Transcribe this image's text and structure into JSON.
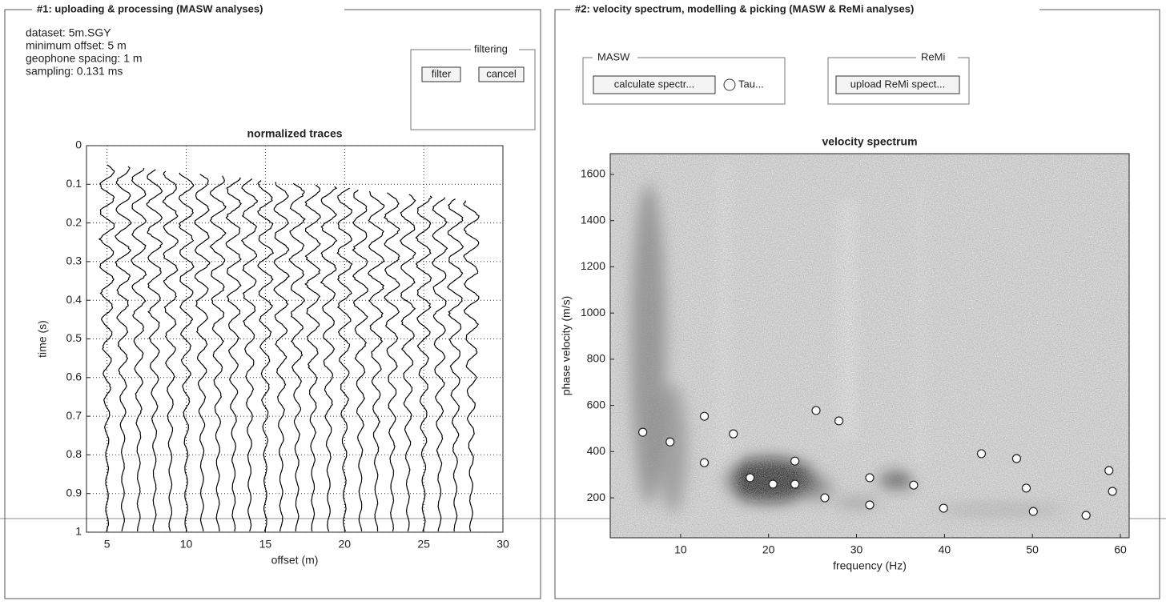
{
  "panel1": {
    "title": "#1: uploading & processing (MASW analyses)",
    "info": [
      "dataset: 5m.SGY",
      "minimum offset: 5 m",
      "geophone spacing: 1 m",
      "sampling: 0.131 ms"
    ],
    "filtering": {
      "title": "filtering",
      "buttons": [
        "filter",
        "cancel"
      ]
    },
    "chart": {
      "type": "seismogram",
      "title": "normalized traces",
      "xlabel": "offset (m)",
      "ylabel": "time (s)",
      "xlim": [
        3.7,
        30
      ],
      "ylim": [
        0,
        1
      ],
      "y_inverted": true,
      "xticks": [
        5,
        10,
        15,
        20,
        25,
        30
      ],
      "yticks": [
        0,
        0.1,
        0.2,
        0.3,
        0.4,
        0.5,
        0.6,
        0.7,
        0.8,
        0.9,
        1
      ],
      "grid": true,
      "trace_offsets": [
        5,
        6,
        7,
        8,
        9,
        10,
        11,
        12,
        13,
        14,
        15,
        16,
        17,
        18,
        19,
        20,
        21,
        22,
        23,
        24,
        25,
        26,
        27,
        28
      ]
    }
  },
  "panel2": {
    "title": "#2: velocity spectrum, modelling & picking (MASW & ReMi analyses)",
    "masw": {
      "title": "MASW",
      "button": "calculate spectr...",
      "radio": "Tau..."
    },
    "remi": {
      "title": "ReMi",
      "button": "upload ReMi spect..."
    },
    "chart": {
      "type": "scatter",
      "title": "velocity spectrum",
      "xlabel": "frequency (Hz)",
      "ylabel": "phase velocity (m/s)",
      "xlim": [
        2,
        61
      ],
      "ylim": [
        27,
        1690
      ],
      "xticks": [
        10,
        20,
        30,
        40,
        50,
        60
      ],
      "yticks": [
        200,
        400,
        600,
        800,
        1000,
        1200,
        1400,
        1600
      ],
      "color": "#ffffff",
      "x": [
        5.7,
        8.8,
        12.7,
        12.7,
        16.0,
        17.9,
        20.5,
        23.0,
        23.0,
        25.4,
        28.0,
        26.4,
        31.5,
        31.5,
        36.5,
        39.9,
        44.2,
        48.2,
        49.3,
        50.1,
        56.1,
        58.7,
        59.1
      ],
      "values": [
        484,
        442,
        553,
        352,
        477,
        287,
        259,
        359,
        259,
        578,
        533,
        200,
        169,
        287,
        255,
        155,
        391,
        370,
        242,
        141,
        124,
        318,
        228
      ]
    }
  }
}
